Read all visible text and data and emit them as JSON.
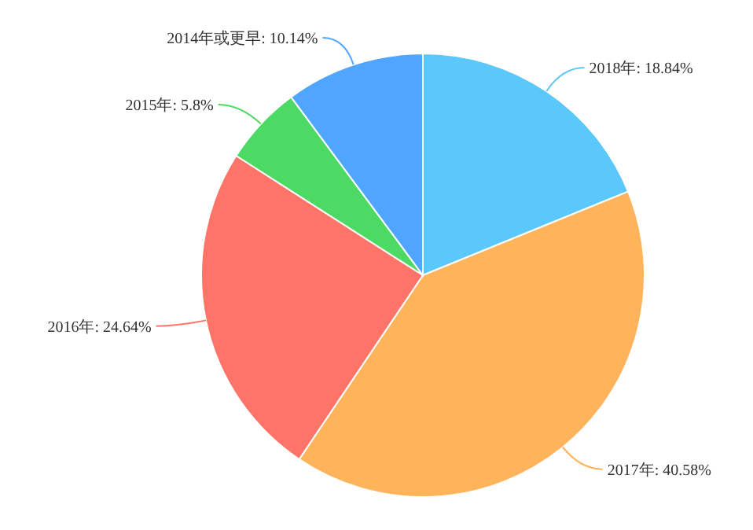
{
  "chart_data": {
    "type": "pie",
    "categories": [
      "2018年",
      "2017年",
      "2016年",
      "2015年",
      "2014年或更早"
    ],
    "values": [
      18.84,
      40.58,
      24.64,
      5.8,
      10.14
    ],
    "colors": [
      "#5ac8fa",
      "#ffb35a",
      "#ff7468",
      "#4cd964",
      "#50a6ff"
    ],
    "value_labels": [
      "18.84%",
      "40.58%",
      "24.64%",
      "5.8%",
      "10.14%"
    ]
  }
}
